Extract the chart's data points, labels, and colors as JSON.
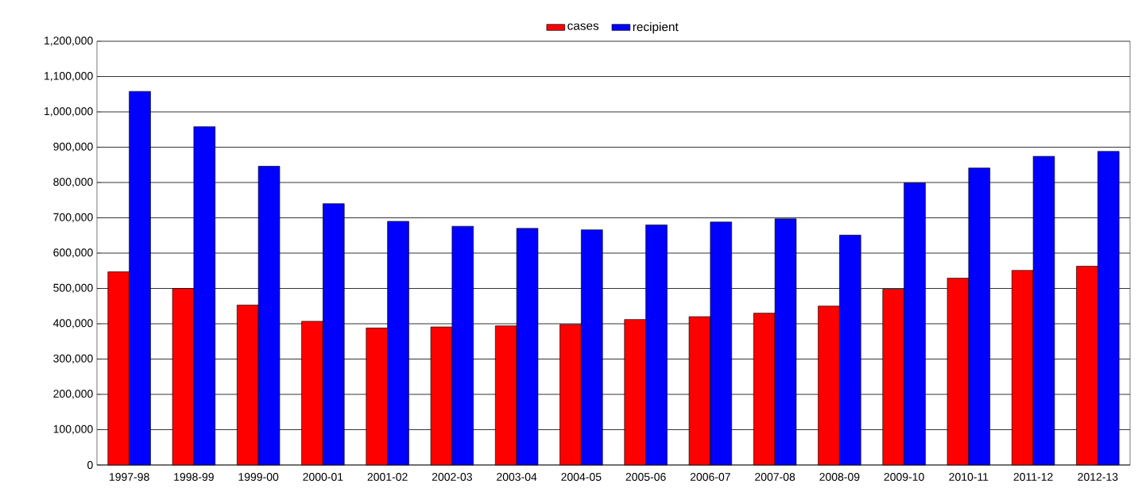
{
  "chart_data": {
    "type": "bar",
    "categories": [
      "1997-98",
      "1998-99",
      "1999-00",
      "2000-01",
      "2001-02",
      "2002-03",
      "2003-04",
      "2004-05",
      "2005-06",
      "2006-07",
      "2007-08",
      "2008-09",
      "2009-10",
      "2010-11",
      "2011-12",
      "2012-13"
    ],
    "series": [
      {
        "name": "cases",
        "color": "#ff0000",
        "values": [
          547000,
          500000,
          453000,
          407000,
          388000,
          391000,
          394000,
          398000,
          412000,
          420000,
          430000,
          450000,
          498000,
          529000,
          551000,
          563000
        ]
      },
      {
        "name": "recipient",
        "color": "#0000ff",
        "values": [
          1058000,
          958000,
          846000,
          740000,
          690000,
          676000,
          670000,
          666000,
          680000,
          688000,
          697000,
          651000,
          799000,
          841000,
          874000,
          888000
        ]
      }
    ],
    "ylim": [
      0,
      1200000
    ],
    "yticks": [
      {
        "value": 0,
        "label": "0"
      },
      {
        "value": 100000,
        "label": "100,000"
      },
      {
        "value": 200000,
        "label": "200,000"
      },
      {
        "value": 300000,
        "label": "300,000"
      },
      {
        "value": 400000,
        "label": "400,000"
      },
      {
        "value": 500000,
        "label": "500,000"
      },
      {
        "value": 600000,
        "label": "600,000"
      },
      {
        "value": 700000,
        "label": "700,000"
      },
      {
        "value": 800000,
        "label": "800,000"
      },
      {
        "value": 900000,
        "label": "900,000"
      },
      {
        "value": 1000000,
        "label": "1,000,000"
      },
      {
        "value": 1100000,
        "label": "1,100,000"
      },
      {
        "value": 1200000,
        "label": "1,200,000"
      }
    ],
    "grid": "y",
    "legend": "top"
  }
}
